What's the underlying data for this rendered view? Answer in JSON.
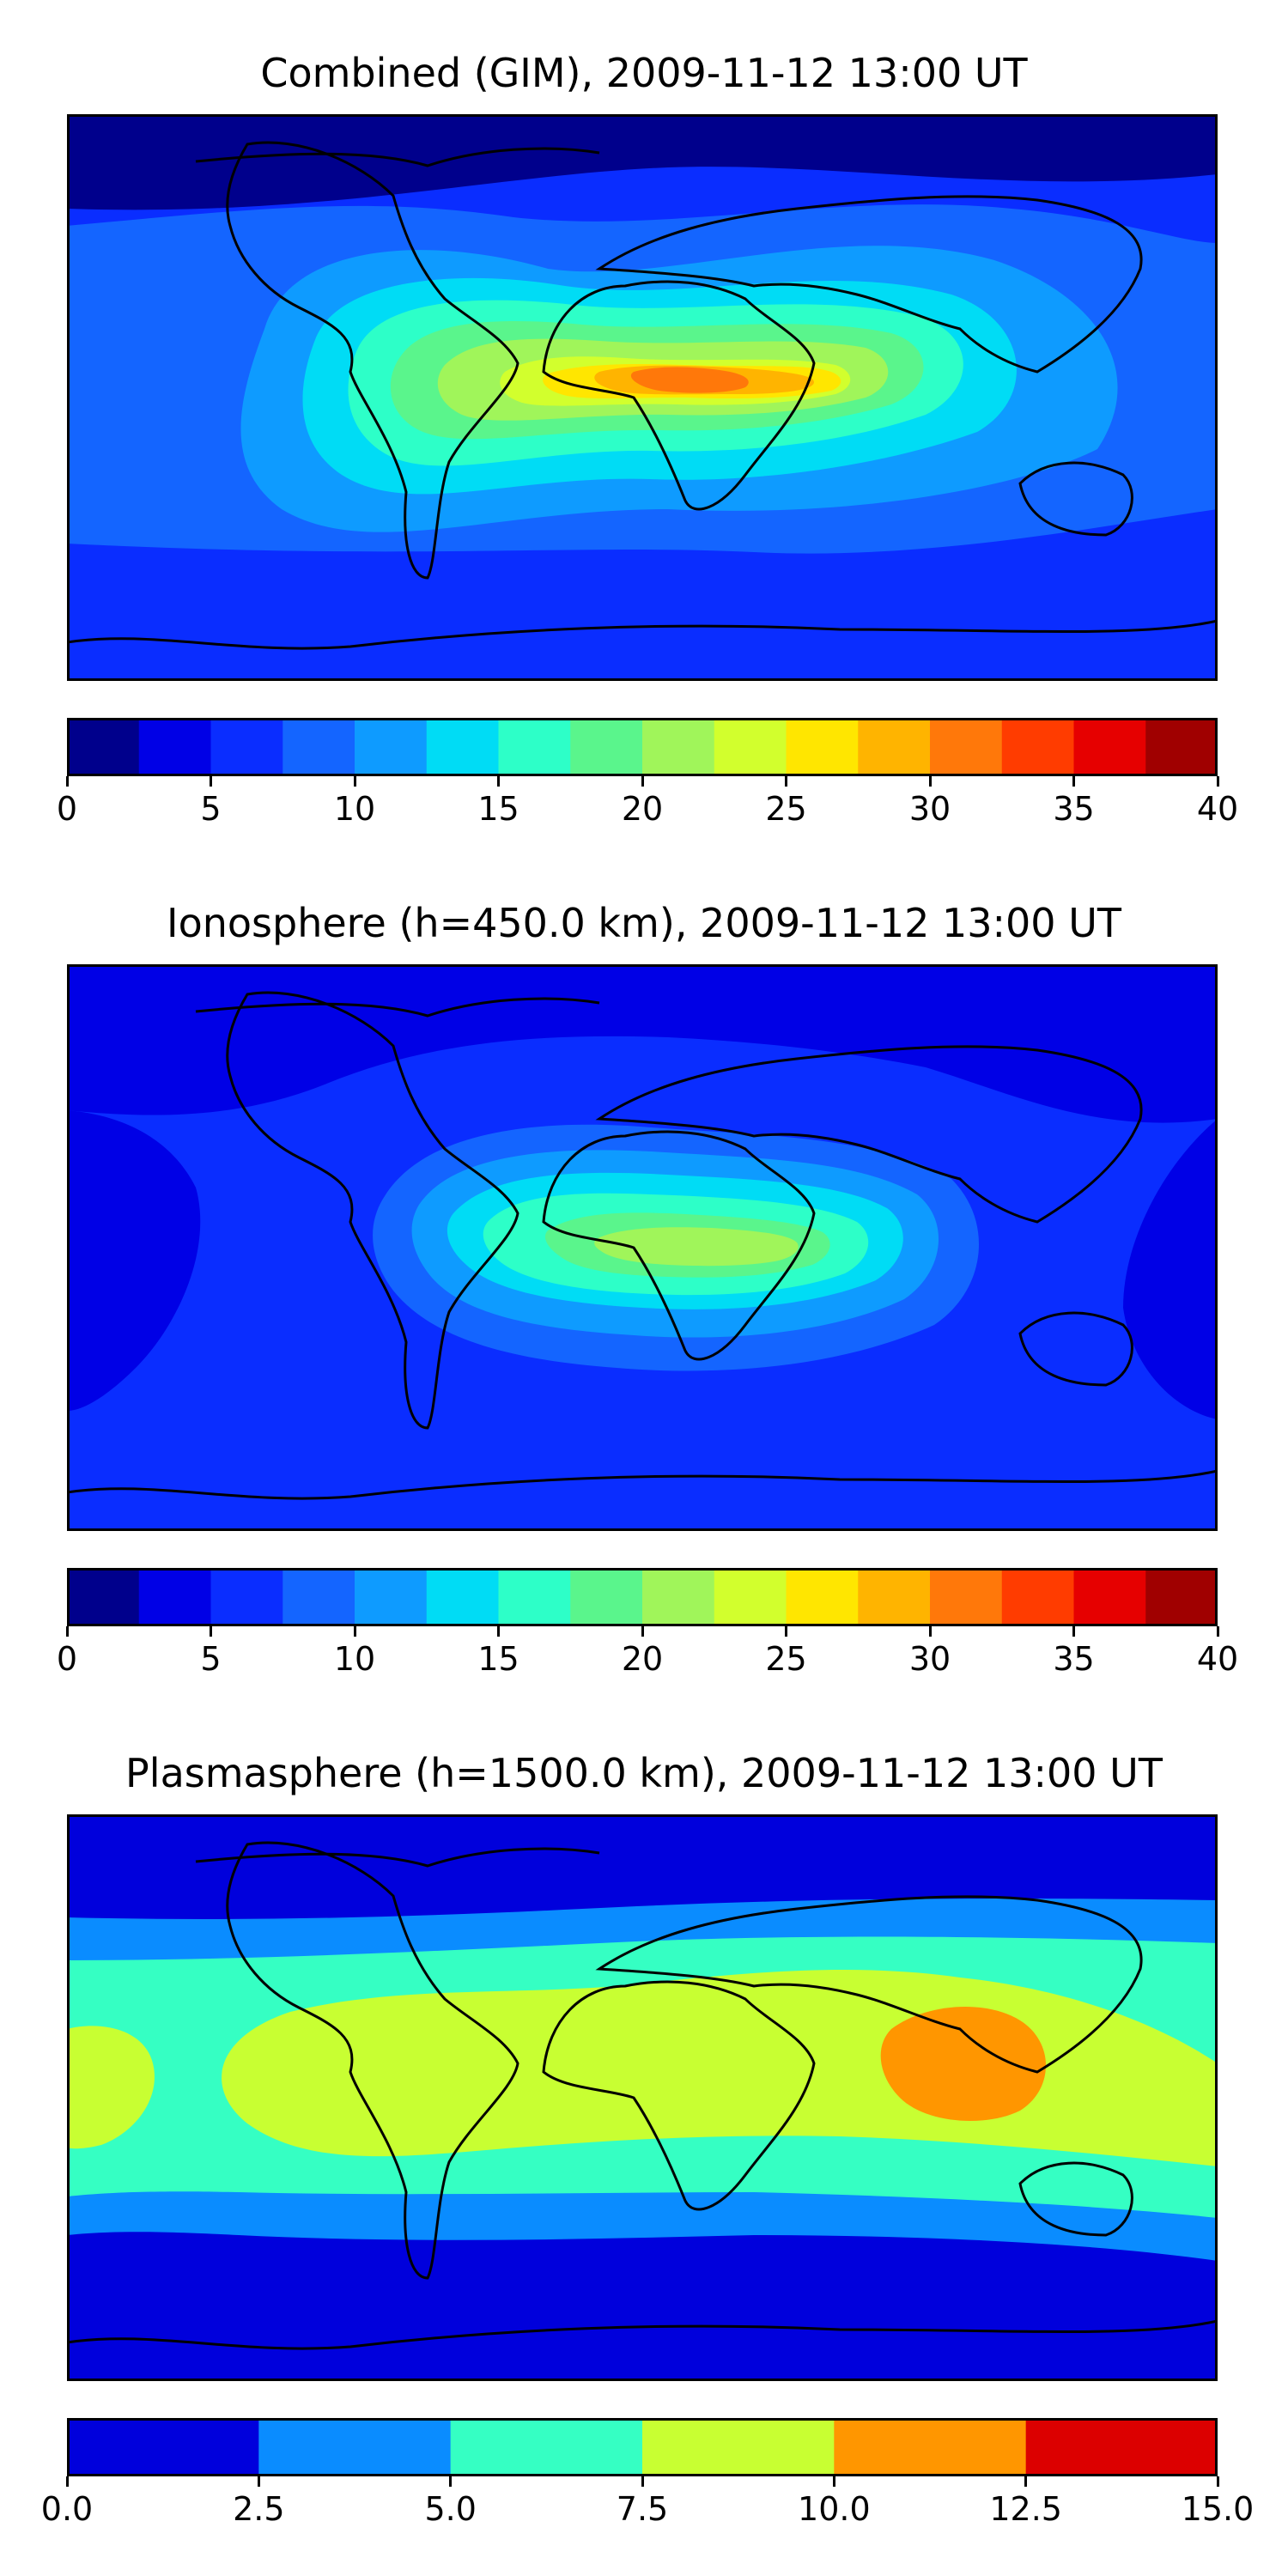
{
  "colors": {
    "c40": [
      "#00008c",
      "#0000e6",
      "#0a2dff",
      "#1465ff",
      "#0e9bff",
      "#00dcf5",
      "#2dffc8",
      "#5af58c",
      "#a0f55a",
      "#d2ff2d",
      "#ffe600",
      "#ffb400",
      "#ff780a",
      "#ff3c00",
      "#e60000",
      "#a00000"
    ],
    "c15": [
      "#0000dc",
      "#0a8cff",
      "#35ffc3",
      "#c8ff32",
      "#ff9600",
      "#dc0000"
    ]
  },
  "chart_data": [
    {
      "type": "heatmap",
      "title": "Combined (GIM), 2009-11-12 13:00 UT",
      "colorbar": {
        "ticks": [
          "0",
          "5",
          "10",
          "15",
          "20",
          "25",
          "30",
          "35",
          "40"
        ],
        "range": [
          0,
          40
        ],
        "levels": 16
      },
      "features": [
        {
          "name": "base",
          "level": 2
        },
        {
          "name": "north-band",
          "level": 0
        },
        {
          "name": "mid-band",
          "level": 3
        },
        {
          "name": "atlantic-africa-crest-1",
          "level": 4
        },
        {
          "name": "atlantic-africa-crest-2",
          "level": 5
        },
        {
          "name": "atlantic-africa-crest-3",
          "level": 6
        },
        {
          "name": "atlantic-africa-crest-4",
          "level": 7
        },
        {
          "name": "atlantic-africa-crest-5",
          "level": 8
        },
        {
          "name": "atlantic-africa-crest-6",
          "level": 9
        },
        {
          "name": "africa-peak-1",
          "level": 10
        },
        {
          "name": "africa-peak-2",
          "level": 11
        },
        {
          "name": "africa-peak-3",
          "level": 12
        }
      ]
    },
    {
      "type": "heatmap",
      "title": "Ionosphere  (h=450.0 km), 2009-11-12 13:00 UT",
      "colorbar": {
        "ticks": [
          "0",
          "5",
          "10",
          "15",
          "20",
          "25",
          "30",
          "35",
          "40"
        ],
        "range": [
          0,
          40
        ],
        "levels": 16
      },
      "features": [
        {
          "name": "base",
          "level": 2
        },
        {
          "name": "north-band",
          "level": 1
        },
        {
          "name": "africa-crest-1",
          "level": 3
        },
        {
          "name": "africa-crest-2",
          "level": 4
        },
        {
          "name": "africa-crest-3",
          "level": 5
        },
        {
          "name": "africa-crest-4",
          "level": 6
        },
        {
          "name": "africa-crest-5",
          "level": 7
        },
        {
          "name": "africa-peak",
          "level": 8
        }
      ]
    },
    {
      "type": "heatmap",
      "title": "Plasmasphere (h=1500.0 km), 2009-11-12 13:00 UT",
      "colorbar": {
        "ticks": [
          "0.0",
          "2.5",
          "5.0",
          "7.5",
          "10.0",
          "12.5",
          "15.0"
        ],
        "range": [
          0,
          15
        ],
        "levels": 6
      },
      "features": [
        {
          "name": "base",
          "level": 0
        },
        {
          "name": "tropical-band-1",
          "level": 1
        },
        {
          "name": "tropical-band-2",
          "level": 2
        },
        {
          "name": "tropical-band-3",
          "level": 3
        },
        {
          "name": "se-asia-peak",
          "level": 4
        }
      ]
    }
  ]
}
